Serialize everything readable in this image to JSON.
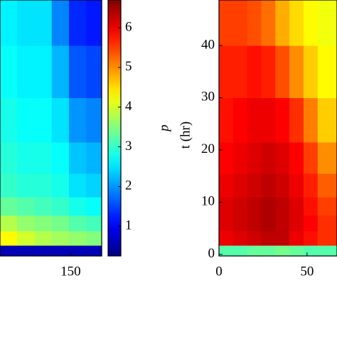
{
  "chart_data": [
    {
      "type": "heatmap",
      "x": [
        114,
        124,
        134,
        144,
        154,
        164
      ],
      "y": [
        0.5,
        3,
        6,
        9,
        13,
        18,
        25,
        35,
        45
      ],
      "z": [
        [
          0.6,
          0.6,
          0.6,
          0.6,
          0.6,
          0.6
        ],
        [
          4.3,
          4.0,
          3.8,
          3.7,
          3.6,
          3.5
        ],
        [
          3.8,
          3.6,
          3.5,
          3.4,
          3.2,
          3.1
        ],
        [
          3.3,
          3.2,
          3.1,
          3.0,
          2.8,
          2.7
        ],
        [
          3.0,
          2.9,
          2.9,
          2.8,
          2.5,
          2.4
        ],
        [
          2.9,
          2.8,
          2.8,
          2.7,
          2.3,
          2.2
        ],
        [
          2.8,
          2.7,
          2.7,
          2.5,
          2.0,
          1.9
        ],
        [
          2.7,
          2.6,
          2.6,
          2.2,
          1.6,
          1.5
        ],
        [
          2.6,
          2.5,
          2.5,
          1.9,
          1.3,
          1.2
        ]
      ],
      "xlim": [
        109,
        168
      ],
      "xticks": [
        150
      ],
      "ylim": [
        -0.3,
        48.7
      ]
    },
    {
      "type": "heatmap",
      "ylabel": "t (hr)",
      "x": [
        4,
        12,
        20,
        28,
        36,
        44,
        52,
        60
      ],
      "y": [
        0.5,
        3,
        6,
        9,
        13,
        18,
        25,
        35,
        45
      ],
      "z": [
        [
          3.2,
          3.2,
          3.3,
          3.3,
          3.4,
          3.3,
          3.2,
          3.2
        ],
        [
          6.0,
          6.1,
          6.2,
          6.3,
          6.3,
          6.0,
          5.8,
          5.6
        ],
        [
          6.1,
          6.2,
          6.3,
          6.4,
          6.3,
          6.1,
          5.9,
          5.6
        ],
        [
          6.1,
          6.2,
          6.3,
          6.4,
          6.3,
          6.1,
          5.8,
          5.5
        ],
        [
          6.0,
          6.1,
          6.2,
          6.3,
          6.2,
          6.0,
          5.7,
          5.3
        ],
        [
          5.9,
          6.0,
          6.1,
          6.2,
          6.1,
          5.9,
          5.5,
          5.0
        ],
        [
          5.8,
          5.9,
          6.0,
          6.0,
          5.9,
          5.6,
          5.1,
          4.6
        ],
        [
          5.7,
          5.7,
          5.8,
          5.7,
          5.4,
          5.0,
          4.6,
          4.3
        ],
        [
          5.5,
          5.5,
          5.4,
          5.2,
          4.8,
          4.5,
          4.3,
          4.2
        ]
      ],
      "xlim": [
        0,
        67
      ],
      "xticks": [
        0,
        50
      ],
      "ylim": [
        -0.3,
        48.7
      ],
      "yticks": [
        0,
        10,
        20,
        30,
        40
      ]
    }
  ],
  "colorbar": {
    "label": "p",
    "colormap": "jet",
    "clim": [
      0.25,
      6.7
    ],
    "ticks": [
      1,
      2,
      3,
      4,
      5,
      6
    ]
  }
}
